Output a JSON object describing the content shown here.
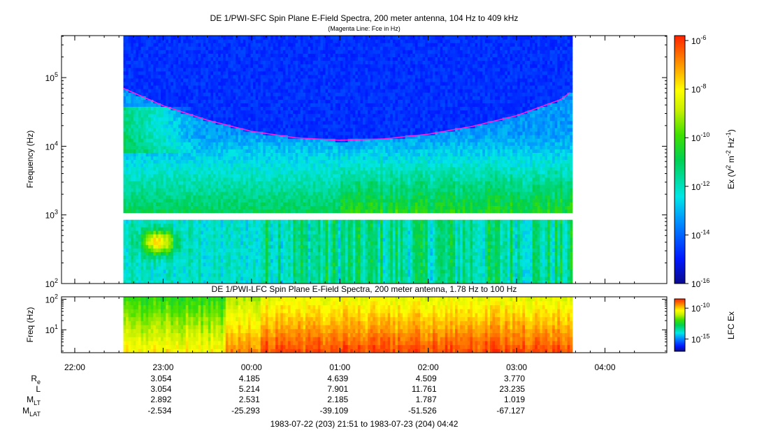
{
  "chart_data": [
    {
      "type": "heatmap",
      "title": "DE 1/PWI-SFC  Spin Plane E-Field Spectra, 200 meter antenna, 104 Hz to 409 kHz",
      "subtitle": "(Magenta Line: Fce in Hz)",
      "ylabel": "Frequency (Hz)",
      "y_scale": "log",
      "ylim": [
        100,
        409000
      ],
      "y_ticks": [
        {
          "value": 100,
          "base": "10",
          "exp": "2"
        },
        {
          "value": 1000,
          "base": "10",
          "exp": "3"
        },
        {
          "value": 10000,
          "base": "10",
          "exp": "4"
        },
        {
          "value": 100000,
          "base": "10",
          "exp": "5"
        }
      ],
      "data_coverage_hours": [
        22.55,
        27.63
      ],
      "data_gap_hz": [
        900,
        1050
      ],
      "fce_line": {
        "name": "Fce",
        "color": "#ff22dd",
        "time_hours": [
          22.55,
          23.0,
          23.5,
          24.0,
          24.5,
          25.0,
          25.5,
          26.0,
          26.5,
          27.0,
          27.5,
          27.6
        ],
        "freq_hz": [
          70000,
          39000,
          24000,
          16500,
          13300,
          12200,
          12800,
          15000,
          19500,
          28000,
          48000,
          60000
        ]
      },
      "colorbar": {
        "label": "Ex (V2 m-2 Hz-1)",
        "label_parts": [
          "Ex (V",
          "2",
          " m",
          "-2",
          " Hz",
          "-1",
          ")"
        ],
        "scale": "log",
        "range": [
          1e-16,
          1e-06
        ],
        "ticks": [
          {
            "value": 1e-16,
            "base": "10",
            "exp": "-16"
          },
          {
            "value": 1e-14,
            "base": "10",
            "exp": "-14"
          },
          {
            "value": 1e-12,
            "base": "10",
            "exp": "-12"
          },
          {
            "value": 1e-10,
            "base": "10",
            "exp": "-10"
          },
          {
            "value": 1e-08,
            "base": "10",
            "exp": "-8"
          },
          {
            "value": 1e-06,
            "base": "10",
            "exp": "-6"
          }
        ]
      }
    },
    {
      "type": "heatmap",
      "title": "DE 1/PWI-LFC  Spin Plane E-Field Spectra, 200 meter antenna, 1.78 Hz to 100 Hz",
      "ylabel": "Freq (Hz)",
      "y_scale": "log",
      "ylim": [
        1.78,
        120
      ],
      "y_ticks": [
        {
          "value": 10,
          "base": "10",
          "exp": "1"
        },
        {
          "value": 100,
          "base": "10",
          "exp": "2"
        }
      ],
      "data_coverage_hours": [
        22.55,
        27.63
      ],
      "colorbar": {
        "label": "LFC Ex",
        "scale": "log",
        "ticks": [
          {
            "value": 1e-15,
            "base": "10",
            "exp": "-15"
          },
          {
            "value": 1e-10,
            "base": "10",
            "exp": "-10"
          }
        ]
      }
    }
  ],
  "time_axis": {
    "range_hours": [
      21.85,
      28.7
    ],
    "major_ticks": [
      {
        "hours": 22,
        "label": "22:00"
      },
      {
        "hours": 23,
        "label": "23:00"
      },
      {
        "hours": 24,
        "label": "00:00"
      },
      {
        "hours": 25,
        "label": "01:00"
      },
      {
        "hours": 26,
        "label": "02:00"
      },
      {
        "hours": 27,
        "label": "03:00"
      },
      {
        "hours": 28,
        "label": "04:00"
      }
    ]
  },
  "ephemeris": {
    "rows": [
      {
        "label_main": "R",
        "label_sub": "e",
        "values": [
          "3.054",
          "4.185",
          "4.639",
          "4.509",
          "3.770"
        ]
      },
      {
        "label_main": "L",
        "label_sub": "",
        "values": [
          "3.054",
          "5.214",
          "7.901",
          "11.761",
          "23.235"
        ]
      },
      {
        "label_main": "M",
        "label_sub": "LT",
        "values": [
          "2.892",
          "2.531",
          "2.185",
          "1.787",
          "1.019"
        ]
      },
      {
        "label_main": "M",
        "label_sub": "LAT",
        "values": [
          "-2.534",
          "-25.293",
          "-39.109",
          "-51.526",
          "-67.127"
        ]
      }
    ]
  },
  "date_range": "1983-07-22 (203) 21:51 to 1983-07-23 (204) 04:42"
}
